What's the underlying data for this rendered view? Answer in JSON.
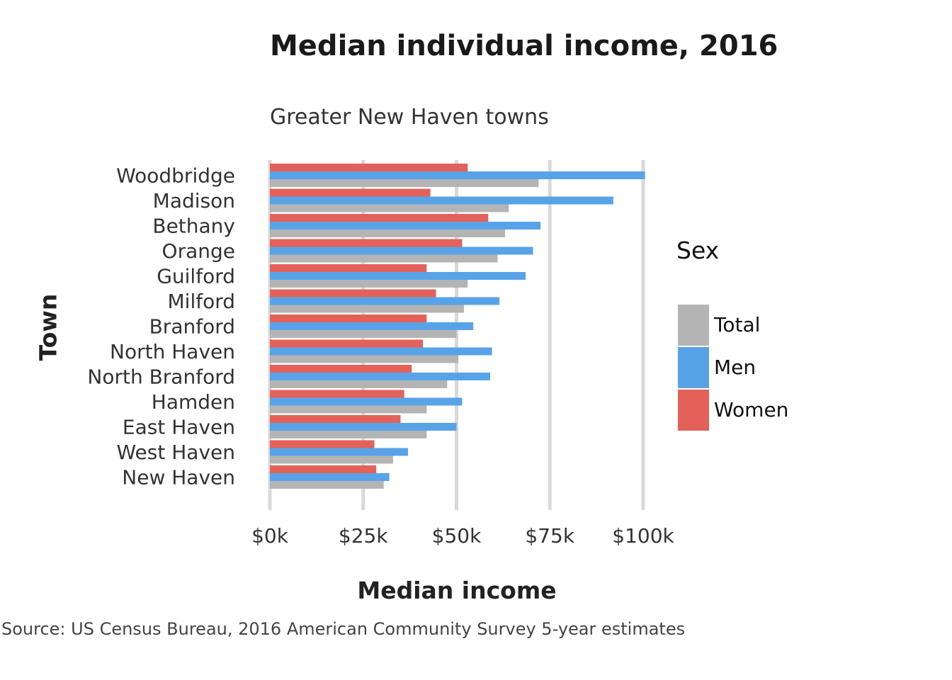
{
  "chart_data": {
    "type": "bar",
    "orientation": "horizontal",
    "title": "Median individual income, 2016",
    "subtitle": "Greater New Haven towns",
    "xlabel": "Median income",
    "ylabel": "Town",
    "caption": "Source: US Census Bureau, 2016 American Community Survey 5-year estimates",
    "xlim": [
      0,
      100000
    ],
    "x_ticks": [
      0,
      25000,
      50000,
      75000,
      100000
    ],
    "x_tick_labels": [
      "$0k",
      "$25k",
      "$50k",
      "$75k",
      "$100k"
    ],
    "grid": "vertical",
    "legend": {
      "title": "Sex",
      "placement": "right",
      "entries": [
        "Total",
        "Men",
        "Women"
      ]
    },
    "categories": [
      "Woodbridge",
      "Madison",
      "Bethany",
      "Orange",
      "Guilford",
      "Milford",
      "Branford",
      "North Haven",
      "North Branford",
      "Hamden",
      "East Haven",
      "West Haven",
      "New Haven"
    ],
    "series": [
      {
        "name": "Women",
        "color": "#e4615a",
        "values": [
          53000,
          43000,
          58500,
          51500,
          42000,
          44500,
          42000,
          41000,
          38000,
          36000,
          35000,
          28000,
          28500
        ]
      },
      {
        "name": "Men",
        "color": "#58a3e8",
        "values": [
          100500,
          92000,
          72500,
          70500,
          68500,
          61500,
          54500,
          59500,
          59000,
          51500,
          50000,
          37000,
          32000
        ]
      },
      {
        "name": "Total",
        "color": "#b4b4b4",
        "values": [
          72000,
          64000,
          63000,
          61000,
          53000,
          52000,
          50000,
          50500,
          47500,
          42000,
          42000,
          33000,
          30500
        ]
      }
    ]
  }
}
